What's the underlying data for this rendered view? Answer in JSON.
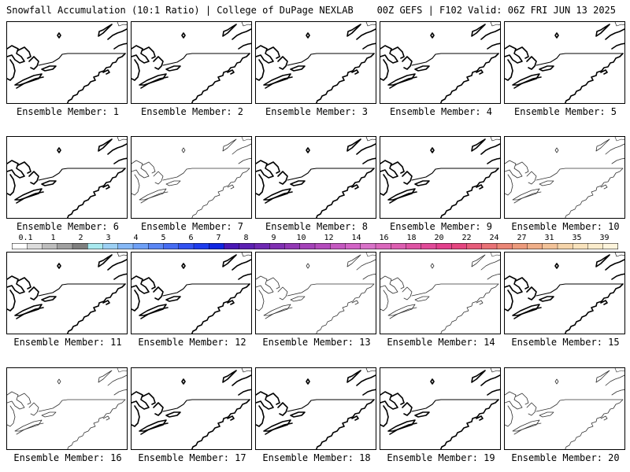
{
  "header": {
    "left": "Snowfall Accumulation (10:1 Ratio) | College of DuPage NEXLAB",
    "right": "00Z GEFS | F102 Valid: 06Z FRI JUN 13 2025"
  },
  "caption_prefix": "Ensemble Member:",
  "members": [
    {
      "id": "1",
      "style": "bold"
    },
    {
      "id": "2",
      "style": "bold"
    },
    {
      "id": "3",
      "style": "bold"
    },
    {
      "id": "4",
      "style": "bold"
    },
    {
      "id": "5",
      "style": "bold"
    },
    {
      "id": "6",
      "style": "bold"
    },
    {
      "id": "7",
      "style": "thin"
    },
    {
      "id": "8",
      "style": "bold"
    },
    {
      "id": "9",
      "style": "bold"
    },
    {
      "id": "10",
      "style": "thin"
    },
    {
      "id": "11",
      "style": "bold"
    },
    {
      "id": "12",
      "style": "bold"
    },
    {
      "id": "13",
      "style": "thin"
    },
    {
      "id": "14",
      "style": "thin"
    },
    {
      "id": "15",
      "style": "bold"
    },
    {
      "id": "16",
      "style": "thin"
    },
    {
      "id": "17",
      "style": "bold"
    },
    {
      "id": "18",
      "style": "bold"
    },
    {
      "id": "19",
      "style": "bold"
    },
    {
      "id": "20",
      "style": "thin"
    }
  ],
  "colorbar": {
    "labels": [
      "0.1",
      "1",
      "2",
      "3",
      "4",
      "5",
      "6",
      "7",
      "8",
      "9",
      "10",
      "12",
      "14",
      "16",
      "18",
      "20",
      "22",
      "24",
      "27",
      "31",
      "35",
      "39"
    ],
    "colors": [
      "#ffffff",
      "#dcdcdc",
      "#bdbdbd",
      "#a0a0a0",
      "#7f7f7f",
      "#a8e8ee",
      "#9cd0f4",
      "#86b8f6",
      "#6ea0f6",
      "#5a86f4",
      "#466cf2",
      "#3252f0",
      "#1e3cec",
      "#1026e2",
      "#4a18b4",
      "#5c20b2",
      "#6e28b2",
      "#8030b2",
      "#9238b4",
      "#a442b8",
      "#b44cbc",
      "#c458c0",
      "#d264c6",
      "#d872c8",
      "#da68bc",
      "#dc5eb0",
      "#de54a4",
      "#e04a98",
      "#e2408c",
      "#e44680",
      "#e65c7a",
      "#e87276",
      "#ea8676",
      "#ec9a7c",
      "#efae88",
      "#f2c298",
      "#f5d4aa",
      "#f8e2bc",
      "#fbeccc",
      "#fdf4dc"
    ]
  }
}
